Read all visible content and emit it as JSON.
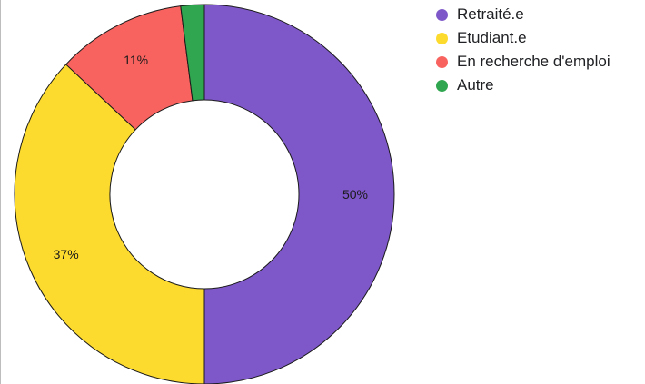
{
  "chart_data": {
    "type": "pie",
    "donut": true,
    "categories": [
      "Retraité.e",
      "Etudiant.e",
      "En recherche d'emploi",
      "Autre"
    ],
    "values": [
      50,
      37,
      11,
      2
    ],
    "data_labels": [
      "50%",
      "37%",
      "11%",
      ""
    ],
    "colors": [
      "#7e57c9",
      "#fddb2e",
      "#f8635f",
      "#2fa64f"
    ],
    "legend_position": "top-right",
    "title": ""
  }
}
